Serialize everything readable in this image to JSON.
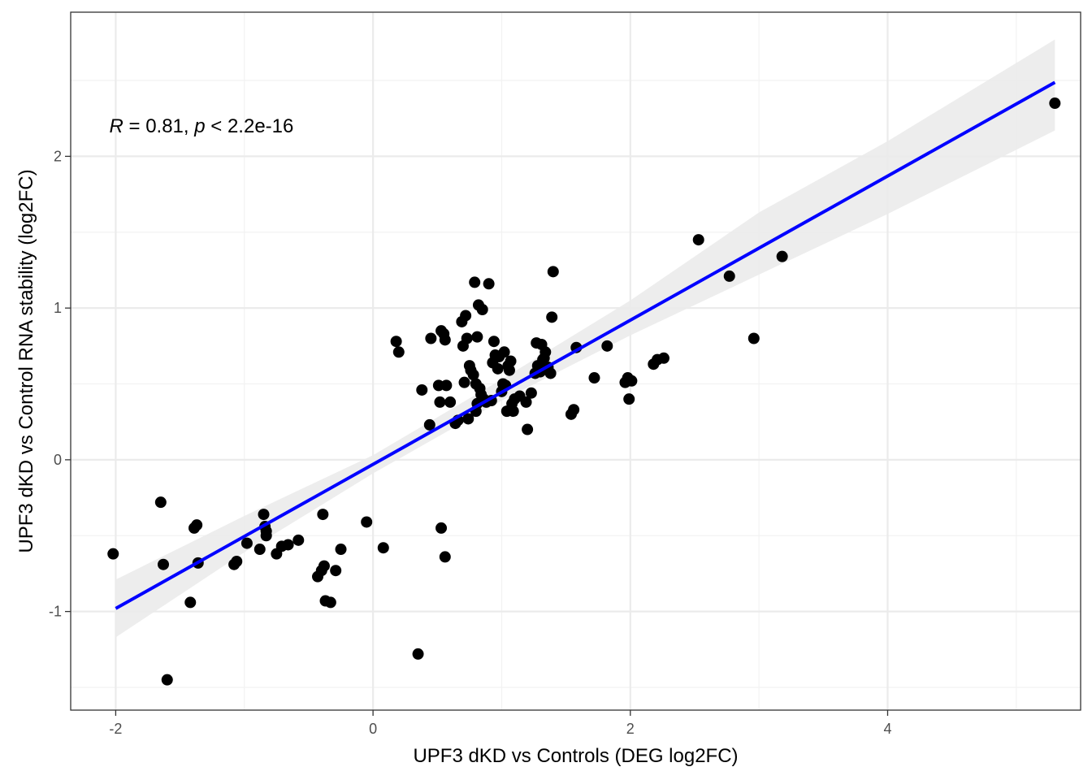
{
  "chart_data": {
    "type": "scatter",
    "title": "",
    "xlabel": "UPF3 dKD vs Controls (DEG log2FC)",
    "ylabel": "UPF3 dKD vs Control RNA stability (log2FC)",
    "xlim": [
      -2.35,
      5.5
    ],
    "ylim": [
      -1.65,
      2.95
    ],
    "x_ticks": [
      -2,
      0,
      2,
      4
    ],
    "y_ticks": [
      -1,
      0,
      1,
      2
    ],
    "x_tick_labels": [
      "-2",
      "0",
      "2",
      "4"
    ],
    "y_tick_labels": [
      "-1",
      "0",
      "1",
      "2"
    ],
    "grid": true,
    "annotation": {
      "r_label": "R",
      "r_value": " = 0.81, ",
      "p_label": "p",
      "p_value": " < 2.2e-16",
      "x": -2.05,
      "y": 2.2
    },
    "regression": {
      "color": "#0000ff",
      "slope": 0.475,
      "intercept": -0.03,
      "x_range": [
        -2.0,
        5.3
      ],
      "ci": {
        "x": [
          -2.0,
          -1.0,
          0.0,
          1.0,
          2.0,
          3.0,
          4.0,
          5.3
        ],
        "lower": [
          -1.17,
          -0.61,
          -0.09,
          0.39,
          0.82,
          1.22,
          1.62,
          2.17
        ],
        "upper": [
          -0.79,
          -0.37,
          0.03,
          0.53,
          1.05,
          1.63,
          2.1,
          2.77
        ]
      },
      "band_color": "#ebebeb"
    },
    "point_color": "#000000",
    "series": [
      {
        "values": [
          [
            -2.02,
            -0.62
          ],
          [
            -1.65,
            -0.28
          ],
          [
            -1.63,
            -0.69
          ],
          [
            -1.6,
            -1.45
          ],
          [
            -1.42,
            -0.94
          ],
          [
            -1.39,
            -0.45
          ],
          [
            -1.37,
            -0.43
          ],
          [
            -1.36,
            -0.68
          ],
          [
            -1.08,
            -0.69
          ],
          [
            -1.06,
            -0.67
          ],
          [
            -0.98,
            -0.55
          ],
          [
            -0.88,
            -0.59
          ],
          [
            -0.85,
            -0.36
          ],
          [
            -0.84,
            -0.44
          ],
          [
            -0.83,
            -0.47
          ],
          [
            -0.83,
            -0.5
          ],
          [
            -0.75,
            -0.62
          ],
          [
            -0.71,
            -0.57
          ],
          [
            -0.66,
            -0.56
          ],
          [
            -0.58,
            -0.53
          ],
          [
            -0.43,
            -0.77
          ],
          [
            -0.4,
            -0.73
          ],
          [
            -0.39,
            -0.36
          ],
          [
            -0.38,
            -0.7
          ],
          [
            -0.37,
            -0.93
          ],
          [
            -0.33,
            -0.94
          ],
          [
            -0.29,
            -0.73
          ],
          [
            -0.25,
            -0.59
          ],
          [
            -0.05,
            -0.41
          ],
          [
            0.08,
            -0.58
          ],
          [
            0.35,
            -1.28
          ],
          [
            0.53,
            -0.45
          ],
          [
            0.56,
            -0.64
          ],
          [
            0.18,
            0.78
          ],
          [
            0.2,
            0.71
          ],
          [
            0.38,
            0.46
          ],
          [
            0.44,
            0.23
          ],
          [
            0.45,
            0.8
          ],
          [
            0.51,
            0.49
          ],
          [
            0.52,
            0.38
          ],
          [
            0.53,
            0.85
          ],
          [
            0.55,
            0.83
          ],
          [
            0.56,
            0.79
          ],
          [
            0.57,
            0.49
          ],
          [
            0.6,
            0.38
          ],
          [
            0.64,
            0.24
          ],
          [
            0.66,
            0.26
          ],
          [
            0.69,
            0.91
          ],
          [
            0.7,
            0.75
          ],
          [
            0.71,
            0.51
          ],
          [
            0.72,
            0.95
          ],
          [
            0.73,
            0.8
          ],
          [
            0.74,
            0.27
          ],
          [
            0.75,
            0.62
          ],
          [
            0.76,
            0.59
          ],
          [
            0.78,
            0.56
          ],
          [
            0.79,
            1.17
          ],
          [
            0.8,
            0.32
          ],
          [
            0.8,
            0.5
          ],
          [
            0.81,
            0.37
          ],
          [
            0.81,
            0.81
          ],
          [
            0.82,
            1.02
          ],
          [
            0.83,
            0.47
          ],
          [
            0.84,
            0.43
          ],
          [
            0.85,
            0.99
          ],
          [
            0.86,
            0.4
          ],
          [
            0.88,
            0.38
          ],
          [
            0.9,
            1.16
          ],
          [
            0.92,
            0.39
          ],
          [
            0.93,
            0.64
          ],
          [
            0.94,
            0.78
          ],
          [
            0.95,
            0.69
          ],
          [
            0.97,
            0.6
          ],
          [
            0.98,
            0.68
          ],
          [
            1.0,
            0.45
          ],
          [
            1.01,
            0.5
          ],
          [
            1.02,
            0.71
          ],
          [
            1.03,
            0.49
          ],
          [
            1.04,
            0.32
          ],
          [
            1.05,
            0.62
          ],
          [
            1.06,
            0.59
          ],
          [
            1.07,
            0.65
          ],
          [
            1.08,
            0.37
          ],
          [
            1.09,
            0.32
          ],
          [
            1.1,
            0.4
          ],
          [
            1.14,
            0.42
          ],
          [
            1.19,
            0.38
          ],
          [
            1.2,
            0.2
          ],
          [
            1.23,
            0.44
          ],
          [
            1.26,
            0.57
          ],
          [
            1.27,
            0.77
          ],
          [
            1.28,
            0.62
          ],
          [
            1.3,
            0.58
          ],
          [
            1.31,
            0.76
          ],
          [
            1.32,
            0.66
          ],
          [
            1.33,
            0.67
          ],
          [
            1.34,
            0.71
          ],
          [
            1.36,
            0.61
          ],
          [
            1.38,
            0.57
          ],
          [
            1.39,
            0.94
          ],
          [
            1.4,
            1.24
          ],
          [
            1.54,
            0.3
          ],
          [
            1.56,
            0.33
          ],
          [
            1.58,
            0.74
          ],
          [
            1.72,
            0.54
          ],
          [
            1.82,
            0.75
          ],
          [
            1.96,
            0.51
          ],
          [
            1.98,
            0.54
          ],
          [
            1.99,
            0.4
          ],
          [
            2.01,
            0.52
          ],
          [
            2.18,
            0.63
          ],
          [
            2.21,
            0.66
          ],
          [
            2.26,
            0.67
          ],
          [
            2.53,
            1.45
          ],
          [
            2.77,
            1.21
          ],
          [
            2.96,
            0.8
          ],
          [
            3.18,
            1.34
          ],
          [
            5.3,
            2.35
          ]
        ]
      }
    ]
  }
}
